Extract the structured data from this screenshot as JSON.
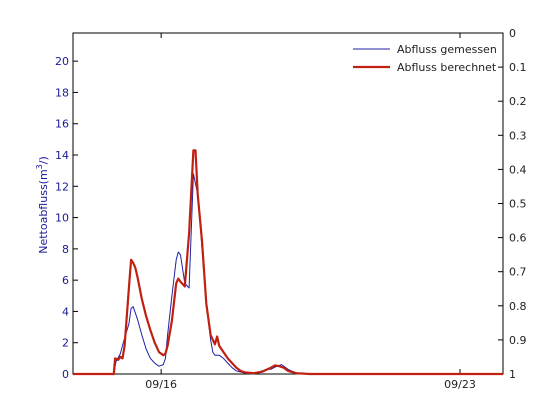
{
  "chart_data": {
    "type": "line",
    "title": "",
    "ylabel": "Nettoabfluss(m 3/)",
    "ylabel_main": "Nettoabfluss(m",
    "ylabel_sup": "3",
    "ylabel_tail": "/)",
    "y2label": "",
    "ylim": [
      0,
      21.8
    ],
    "y2lim": [
      0,
      1
    ],
    "y2_inverted": true,
    "xlim": [
      0,
      100
    ],
    "x_tick_positions": [
      20.5,
      90
    ],
    "x_tick_labels": [
      "09/16",
      "09/23"
    ],
    "y_ticks": [
      0,
      2,
      4,
      6,
      8,
      10,
      12,
      14,
      16,
      18,
      20
    ],
    "y2_ticks": [
      0,
      0.1,
      0.2,
      0.3,
      0.4,
      0.5,
      0.6,
      0.7,
      0.8,
      0.9,
      1
    ],
    "y2_tick_labels": [
      "0",
      "0.1",
      "0.2",
      "0.3",
      "0.4",
      "0.5",
      "0.6",
      "0.7",
      "0.8",
      "0.9",
      "1"
    ],
    "grid": false,
    "legend_position": "top-right",
    "series": [
      {
        "name": "Abfluss gemessen",
        "color": "#1f1fa8",
        "x": [
          0,
          9.5,
          10,
          11,
          12,
          13,
          13.5,
          14,
          15,
          16,
          17,
          18,
          19,
          20,
          21,
          21.5,
          22,
          23,
          24,
          24.5,
          25,
          26,
          27,
          28,
          29,
          29.5,
          30,
          31,
          32,
          32.5,
          33,
          34,
          35,
          36,
          37,
          38,
          40,
          42,
          44,
          45,
          46,
          47,
          48,
          48.5,
          49,
          50,
          52,
          55,
          60,
          80,
          100
        ],
        "y": [
          0,
          0,
          0.8,
          1.3,
          2.3,
          3.2,
          4.2,
          4.3,
          3.5,
          2.5,
          1.6,
          1.0,
          0.7,
          0.5,
          0.6,
          1.0,
          2.5,
          5.0,
          7.3,
          7.8,
          7.6,
          5.8,
          5.5,
          12.8,
          11.5,
          10.0,
          8.0,
          4.5,
          2.2,
          1.4,
          1.2,
          1.2,
          1.0,
          0.7,
          0.4,
          0.2,
          0.05,
          0,
          0.2,
          0.3,
          0.3,
          0.45,
          0.55,
          0.6,
          0.5,
          0.3,
          0.05,
          0,
          0,
          0,
          0
        ]
      },
      {
        "name": "Abfluss berechnet",
        "color": "#c02010",
        "x": [
          0,
          9.5,
          9.8,
          10.5,
          11,
          11.5,
          12,
          13,
          13.5,
          14,
          14.5,
          15,
          16,
          17,
          18,
          19,
          20,
          21,
          21.5,
          22,
          23,
          24,
          24.5,
          25,
          26,
          27,
          28,
          28.5,
          29,
          30,
          31,
          32,
          33,
          33.5,
          34,
          35,
          36,
          37,
          38,
          39,
          40,
          42,
          44,
          46,
          47,
          48,
          48.5,
          49,
          50,
          52,
          55,
          60,
          80,
          100
        ],
        "y": [
          0,
          0,
          1.0,
          0.9,
          1.1,
          1.0,
          1.8,
          5.5,
          7.3,
          7.1,
          6.8,
          6.2,
          4.8,
          3.7,
          2.8,
          2.0,
          1.4,
          1.2,
          1.3,
          1.8,
          3.4,
          5.8,
          6.1,
          5.9,
          5.6,
          9.0,
          14.3,
          14.3,
          11.5,
          8.5,
          4.5,
          2.5,
          1.9,
          2.4,
          1.8,
          1.4,
          1.0,
          0.7,
          0.4,
          0.2,
          0.1,
          0.05,
          0.15,
          0.4,
          0.55,
          0.5,
          0.45,
          0.4,
          0.2,
          0.05,
          0,
          0,
          0,
          0
        ]
      }
    ]
  }
}
